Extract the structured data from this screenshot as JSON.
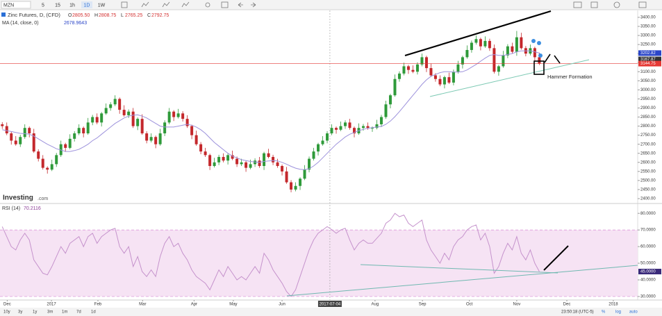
{
  "toolbar": {
    "symbol": "MZN",
    "intervals": [
      "5",
      "15",
      "1h",
      "1D",
      "1W"
    ],
    "status": "realtime"
  },
  "brand": {
    "name": "Investing",
    "suffix": ".com"
  },
  "annotations": [
    "Hammer Formation"
  ],
  "footer": {
    "ranges": [
      "10y",
      "3y",
      "1y",
      "3m",
      "1m",
      "7d",
      "1d"
    ],
    "time": "23:50:18 (UTC-5)",
    "options": [
      "%",
      "log",
      "auto"
    ]
  },
  "chart_data": [
    {
      "type": "candlestick",
      "title": "Zinc Futures, D, (CFD)",
      "ohlc_legend": [
        {
          "key": "O",
          "value": "2805.50"
        },
        {
          "key": "H",
          "value": "2808.75"
        },
        {
          "key": "L",
          "value": "2765.25"
        },
        {
          "key": "C",
          "value": "2792.75"
        }
      ],
      "up_color": "#2f9a3a",
      "down_color": "#c4282c",
      "xlim": [
        -0.5,
        140.8
      ],
      "ylim": [
        2377,
        3442
      ],
      "yticks": [
        {
          "value": 3400,
          "label": "3400.00"
        },
        {
          "value": 3350,
          "label": "3350.00"
        },
        {
          "value": 3300,
          "label": "3300.00"
        },
        {
          "value": 3250,
          "label": "3250.00"
        },
        {
          "value": 3200,
          "label": "3200.00"
        },
        {
          "value": 3150,
          "label": "3150.00"
        },
        {
          "value": 3100,
          "label": "3100.00"
        },
        {
          "value": 3050,
          "label": "3050.00"
        },
        {
          "value": 3000,
          "label": "3000.00"
        },
        {
          "value": 2950,
          "label": "2950.00"
        },
        {
          "value": 2900,
          "label": "2900.00"
        },
        {
          "value": 2850,
          "label": "2850.00"
        },
        {
          "value": 2800,
          "label": "2800.00"
        },
        {
          "value": 2750,
          "label": "2750.00"
        },
        {
          "value": 2700,
          "label": "2700.00"
        },
        {
          "value": 2650,
          "label": "2650.00"
        },
        {
          "value": 2600,
          "label": "2600.00"
        },
        {
          "value": 2550,
          "label": "2550.00"
        },
        {
          "value": 2500,
          "label": "2500.00"
        },
        {
          "value": 2450,
          "label": "2450.00"
        },
        {
          "value": 2400,
          "label": "2400.00"
        }
      ],
      "price_labels": [
        {
          "value": 3202.82,
          "label": "3202.82",
          "color": "#2a45c8"
        },
        {
          "value": 3167.87,
          "label": "3167.87",
          "color": "#333333"
        },
        {
          "value": 3144.75,
          "label": "3144.75",
          "color": "#e53935",
          "line": true
        }
      ],
      "open": [
        2810,
        2800,
        2760,
        2720,
        2700,
        2740,
        2790,
        2760,
        2660,
        2620,
        2570,
        2560,
        2590,
        2640,
        2700,
        2680,
        2730,
        2760,
        2790,
        2760,
        2820,
        2850,
        2820,
        2870,
        2900,
        2920,
        2950,
        2890,
        2860,
        2880,
        2800,
        2840,
        2760,
        2720,
        2740,
        2700,
        2760,
        2820,
        2880,
        2850,
        2870,
        2840,
        2800,
        2750,
        2700,
        2660,
        2640,
        2580,
        2600,
        2630,
        2610,
        2640,
        2620,
        2590,
        2600,
        2570,
        2590,
        2610,
        2580,
        2650,
        2630,
        2600,
        2580,
        2550,
        2490,
        2450,
        2470,
        2510,
        2560,
        2620,
        2660,
        2700,
        2720,
        2760,
        2790,
        2780,
        2800,
        2820,
        2790,
        2760,
        2790,
        2800,
        2790,
        2790,
        2810,
        2850,
        2920,
        2970,
        3060,
        3090,
        3130,
        3110,
        3100,
        3140,
        3180,
        3120,
        3080,
        3060,
        3030,
        3070,
        3040,
        3100,
        3140,
        3180,
        3220,
        3260,
        3280,
        3240,
        3270,
        3230,
        3100,
        3130,
        3190,
        3240,
        3210,
        3290,
        3230,
        3200,
        3230,
        3180
      ],
      "high": [
        2822,
        2820,
        2768,
        2745,
        2752,
        2810,
        2798,
        2785,
        2672,
        2640,
        2578,
        2615,
        2652,
        2720,
        2708,
        2755,
        2772,
        2810,
        2798,
        2845,
        2862,
        2870,
        2878,
        2925,
        2932,
        2970,
        2958,
        2915,
        2892,
        2900,
        2848,
        2865,
        2772,
        2760,
        2748,
        2785,
        2832,
        2900,
        2888,
        2895,
        2882,
        2860,
        2808,
        2775,
        2712,
        2680,
        2648,
        2625,
        2642,
        2650,
        2648,
        2665,
        2632,
        2620,
        2608,
        2615,
        2622,
        2630,
        2658,
        2675,
        2642,
        2620,
        2588,
        2575,
        2502,
        2490,
        2518,
        2585,
        2632,
        2680,
        2708,
        2745,
        2772,
        2810,
        2798,
        2825,
        2832,
        2840,
        2798,
        2815,
        2812,
        2820,
        2798,
        2835,
        2862,
        2940,
        2978,
        3085,
        3102,
        3150,
        3138,
        3135,
        3152,
        3200,
        3188,
        3145,
        3092,
        3080,
        3078,
        3095,
        3112,
        3160,
        3188,
        3245,
        3272,
        3300,
        3288,
        3295,
        3282,
        3250,
        3138,
        3215,
        3252,
        3260,
        3325,
        3315,
        3242,
        3250,
        3238,
        3205
      ],
      "low": [
        2785,
        2750,
        2698,
        2692,
        2685,
        2730,
        2738,
        2652,
        2605,
        2560,
        2538,
        2552,
        2575,
        2630,
        2658,
        2672,
        2715,
        2750,
        2738,
        2752,
        2805,
        2810,
        2798,
        2862,
        2885,
        2910,
        2868,
        2852,
        2845,
        2790,
        2778,
        2752,
        2705,
        2710,
        2678,
        2692,
        2745,
        2810,
        2828,
        2842,
        2825,
        2790,
        2728,
        2692,
        2645,
        2630,
        2558,
        2572,
        2585,
        2600,
        2588,
        2612,
        2575,
        2580,
        2548,
        2562,
        2575,
        2570,
        2558,
        2622,
        2585,
        2570,
        2528,
        2482,
        2435,
        2440,
        2448,
        2502,
        2545,
        2610,
        2638,
        2692,
        2705,
        2750,
        2758,
        2772,
        2785,
        2780,
        2738,
        2752,
        2775,
        2780,
        2768,
        2782,
        2795,
        2840,
        2898,
        2962,
        3045,
        3080,
        3088,
        3092,
        3085,
        3130,
        3098,
        3072,
        3045,
        3020,
        3008,
        3032,
        3025,
        3090,
        3118,
        3172,
        3205,
        3250,
        3218,
        3232,
        3215,
        3090,
        3078,
        3122,
        3175,
        3200,
        3188,
        3222,
        3185,
        3190,
        3158,
        3137
      ],
      "close": [
        2800,
        2760,
        2720,
        2700,
        2740,
        2790,
        2760,
        2660,
        2620,
        2570,
        2560,
        2590,
        2640,
        2700,
        2680,
        2730,
        2760,
        2790,
        2760,
        2820,
        2850,
        2820,
        2870,
        2900,
        2920,
        2950,
        2890,
        2860,
        2880,
        2800,
        2840,
        2760,
        2720,
        2740,
        2700,
        2760,
        2820,
        2880,
        2850,
        2870,
        2840,
        2800,
        2750,
        2700,
        2660,
        2640,
        2580,
        2600,
        2630,
        2610,
        2640,
        2620,
        2590,
        2600,
        2570,
        2590,
        2610,
        2580,
        2650,
        2630,
        2600,
        2580,
        2550,
        2490,
        2450,
        2470,
        2510,
        2560,
        2620,
        2660,
        2700,
        2720,
        2760,
        2790,
        2780,
        2800,
        2820,
        2790,
        2760,
        2790,
        2800,
        2790,
        2790,
        2810,
        2850,
        2920,
        2970,
        3060,
        3090,
        3130,
        3110,
        3100,
        3140,
        3180,
        3120,
        3080,
        3060,
        3030,
        3070,
        3040,
        3100,
        3140,
        3180,
        3220,
        3260,
        3280,
        3240,
        3270,
        3230,
        3100,
        3130,
        3190,
        3240,
        3210,
        3290,
        3230,
        3200,
        3230,
        3180,
        3144.75
      ],
      "series": [
        {
          "name": "MA (14, close, 0)",
          "color": "#9d92dc",
          "legend_value": "2678.9643",
          "values": [
            2780,
            2775,
            2770,
            2765,
            2760,
            2758,
            2755,
            2745,
            2730,
            2715,
            2700,
            2688,
            2675,
            2668,
            2660,
            2660,
            2665,
            2672,
            2685,
            2700,
            2720,
            2735,
            2755,
            2775,
            2795,
            2815,
            2830,
            2845,
            2855,
            2860,
            2862,
            2855,
            2845,
            2830,
            2815,
            2800,
            2795,
            2795,
            2795,
            2800,
            2805,
            2810,
            2805,
            2795,
            2780,
            2760,
            2735,
            2710,
            2690,
            2670,
            2650,
            2635,
            2625,
            2615,
            2610,
            2605,
            2602,
            2600,
            2605,
            2608,
            2610,
            2608,
            2600,
            2590,
            2578,
            2568,
            2562,
            2560,
            2565,
            2580,
            2600,
            2625,
            2650,
            2675,
            2700,
            2720,
            2740,
            2755,
            2765,
            2775,
            2782,
            2788,
            2792,
            2795,
            2798,
            2810,
            2828,
            2852,
            2880,
            2910,
            2940,
            2970,
            3000,
            3030,
            3055,
            3075,
            3085,
            3095,
            3100,
            3100,
            3098,
            3098,
            3100,
            3110,
            3125,
            3140,
            3158,
            3175,
            3190,
            3195,
            3190,
            3190,
            3195,
            3200,
            3210,
            3215,
            3215,
            3215,
            3210,
            3202.82
          ]
        }
      ]
    },
    {
      "type": "line",
      "xlim": [
        -0.5,
        140.8
      ],
      "ylim": [
        28.3,
        85.5
      ],
      "yticks": [
        {
          "value": 80,
          "label": "80.0000"
        },
        {
          "value": 70,
          "label": "70.0000"
        },
        {
          "value": 60,
          "label": "60.0000"
        },
        {
          "value": 50,
          "label": "50.0000"
        },
        {
          "value": 40,
          "label": "40.0000"
        },
        {
          "value": 30,
          "label": "30.0000"
        }
      ],
      "band": [
        30,
        70
      ],
      "band_color": "#f6e3f4",
      "y_marker": {
        "value": 45,
        "label": "45.0000"
      },
      "xticks": [
        {
          "value": 1.1,
          "label": "Dec"
        },
        {
          "value": 10.9,
          "label": "2017"
        },
        {
          "value": 21.2,
          "label": "Feb"
        },
        {
          "value": 31.1,
          "label": "Mar"
        },
        {
          "value": 42.5,
          "label": "Apr"
        },
        {
          "value": 51.2,
          "label": "May"
        },
        {
          "value": 62,
          "label": "Jun"
        },
        {
          "value": 82.6,
          "label": "Aug"
        },
        {
          "value": 93.1,
          "label": "Sep"
        },
        {
          "value": 103.5,
          "label": "Oct"
        },
        {
          "value": 114,
          "label": "Nov"
        },
        {
          "value": 125.1,
          "label": "Dec"
        },
        {
          "value": 135.4,
          "label": "2018"
        }
      ],
      "x_marker": {
        "value": 72.6,
        "label": "2017-07-04"
      },
      "series": [
        {
          "name": "RSI (14)",
          "color": "#c592cc",
          "legend_value": "70.2116",
          "values": [
            72,
            66,
            60,
            58,
            64,
            68,
            64,
            52,
            48,
            44,
            43,
            48,
            54,
            60,
            56,
            62,
            64,
            66,
            60,
            66,
            68,
            62,
            66,
            68,
            70,
            71,
            60,
            56,
            60,
            48,
            54,
            45,
            42,
            46,
            42,
            54,
            62,
            66,
            60,
            62,
            56,
            52,
            46,
            42,
            40,
            38,
            34,
            40,
            46,
            42,
            48,
            44,
            40,
            42,
            40,
            44,
            48,
            44,
            56,
            52,
            46,
            42,
            38,
            33,
            30,
            34,
            42,
            50,
            58,
            64,
            68,
            70,
            72,
            70.2,
            68,
            70,
            71,
            64,
            58,
            62,
            64,
            62,
            62,
            65,
            68,
            74,
            76,
            80,
            78,
            79,
            74,
            72,
            74,
            76,
            64,
            58,
            54,
            50,
            56,
            52,
            60,
            64,
            66,
            70,
            72,
            73,
            64,
            68,
            60,
            44,
            48,
            56,
            62,
            58,
            66,
            56,
            52,
            58,
            50,
            45
          ]
        }
      ]
    }
  ]
}
